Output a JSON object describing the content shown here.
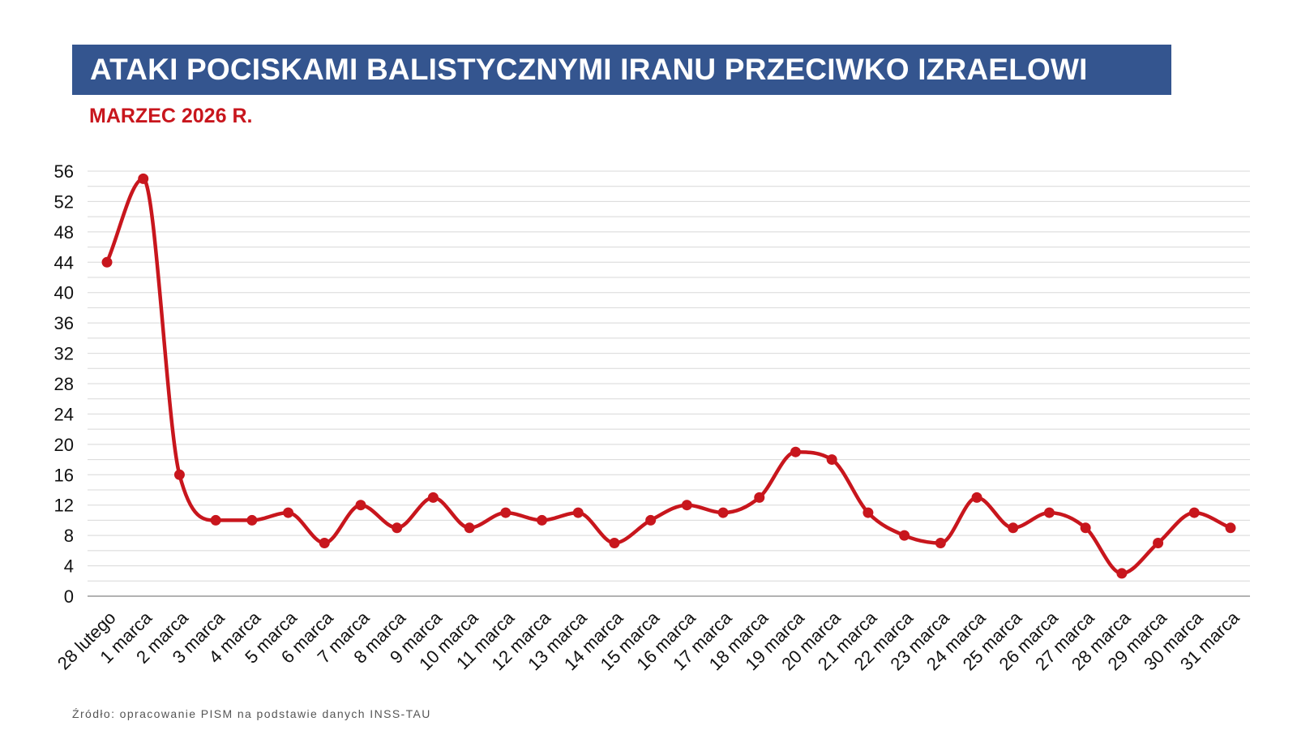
{
  "header": {
    "title": "ATAKI POCISKAMI BALISTYCZNYMI IRANU PRZECIWKO IZRAELOWI",
    "subtitle": "MARZEC 2026 R."
  },
  "footer": {
    "source": "Źródło: opracowanie PISM na podstawie danych INSS-TAU"
  },
  "colors": {
    "title_bar": "#34558f",
    "title_text": "#ffffff",
    "subtitle": "#c8161d",
    "series_line": "#c8161d",
    "grid": "#d8d8d8",
    "axis": "#999999"
  },
  "chart_data": {
    "type": "line",
    "title": "ATAKI POCISKAMI BALISTYCZNYMI IRANU PRZECIWKO IZRAELOWI",
    "subtitle": "MARZEC 2026 R.",
    "xlabel": "",
    "ylabel": "",
    "ylim": [
      0,
      56
    ],
    "yticks": [
      0,
      4,
      8,
      12,
      16,
      20,
      24,
      28,
      32,
      36,
      40,
      44,
      48,
      52,
      56
    ],
    "minor_gridlines": true,
    "grid": true,
    "legend": "none",
    "smooth": true,
    "categories": [
      "28 lutego",
      "1 marca",
      "2 marca",
      "3 marca",
      "4 marca",
      "5 marca",
      "6 marca",
      "7 marca",
      "8 marca",
      "9 marca",
      "10 marca",
      "11 marca",
      "12 marca",
      "13 marca",
      "14 marca",
      "15 marca",
      "16 marca",
      "17 marca",
      "18 marca",
      "19 marca",
      "20 marca",
      "21 marca",
      "22 marca",
      "23 marca",
      "24 marca",
      "25 marca",
      "26 marca",
      "27 marca",
      "28 marca",
      "29 marca",
      "30 marca",
      "31 marca"
    ],
    "series": [
      {
        "values": [
          44,
          55,
          16,
          10,
          10,
          11,
          7,
          12,
          9,
          13,
          9,
          11,
          10,
          11,
          7,
          10,
          12,
          11,
          13,
          19,
          18,
          11,
          8,
          7,
          13,
          9,
          11,
          9,
          3,
          7,
          11,
          9
        ]
      }
    ]
  }
}
